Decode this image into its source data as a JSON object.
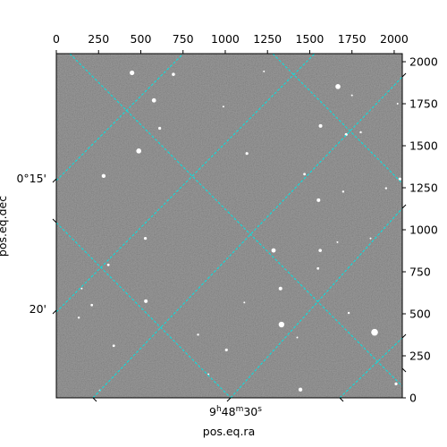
{
  "figure": {
    "pixel_axis_x": {
      "ticks": [
        0,
        250,
        500,
        750,
        1000,
        1250,
        1500,
        1750,
        2000
      ],
      "range": [
        0,
        2048
      ]
    },
    "pixel_axis_y": {
      "ticks": [
        0,
        250,
        500,
        750,
        1000,
        1250,
        1500,
        1750,
        2000
      ],
      "range": [
        0,
        2048
      ]
    },
    "ra_axis": {
      "label": "pos.eq.ra",
      "tick_label": {
        "hours": "9",
        "minutes": "48",
        "seconds": "30",
        "h": "h",
        "m": "m",
        "s": "s"
      }
    },
    "dec_axis": {
      "label": "pos.eq.dec",
      "tick_labels": [
        "0°15'",
        "20'"
      ]
    },
    "grid_color": "#00e5e5",
    "image": {
      "background": "#7a7a7a",
      "sources": [
        [
          448,
          1934,
          2.6
        ],
        [
          693,
          1925,
          1.8
        ],
        [
          578,
          1770,
          2.4
        ],
        [
          1667,
          1852,
          2.8
        ],
        [
          989,
          1733,
          1.0
        ],
        [
          1229,
          1942,
          1.0
        ],
        [
          612,
          1604,
          1.6
        ],
        [
          1564,
          1618,
          2.0
        ],
        [
          1716,
          1567,
          1.6
        ],
        [
          1802,
          1580,
          1.2
        ],
        [
          488,
          1469,
          2.8
        ],
        [
          1128,
          1454,
          1.6
        ],
        [
          280,
          1320,
          2.2
        ],
        [
          1469,
          1331,
          1.4
        ],
        [
          1552,
          1176,
          2.0
        ],
        [
          1698,
          1227,
          1.2
        ],
        [
          1952,
          1247,
          1.2
        ],
        [
          2034,
          1302,
          1.6
        ],
        [
          527,
          949,
          1.6
        ],
        [
          1286,
          877,
          2.4
        ],
        [
          1562,
          877,
          1.8
        ],
        [
          1664,
          926,
          1.0
        ],
        [
          1860,
          949,
          1.0
        ],
        [
          308,
          791,
          1.4
        ],
        [
          1549,
          770,
          1.4
        ],
        [
          1327,
          650,
          2.0
        ],
        [
          530,
          575,
          2.0
        ],
        [
          1113,
          567,
          1.0
        ],
        [
          210,
          552,
          1.4
        ],
        [
          1731,
          505,
          1.2
        ],
        [
          133,
          477,
          1.2
        ],
        [
          1333,
          436,
          3.2
        ],
        [
          839,
          376,
          1.2
        ],
        [
          1426,
          359,
          1.0
        ],
        [
          1884,
          390,
          3.8
        ],
        [
          340,
          310,
          1.4
        ],
        [
          1007,
          285,
          1.6
        ],
        [
          1445,
          49,
          2.2
        ],
        [
          2011,
          83,
          1.6
        ],
        [
          257,
          44,
          1.0
        ],
        [
          1750,
          1800,
          1.0
        ],
        [
          2020,
          1750,
          1.0
        ],
        [
          900,
          140,
          1.0
        ],
        [
          150,
          650,
          1.0
        ]
      ]
    }
  }
}
